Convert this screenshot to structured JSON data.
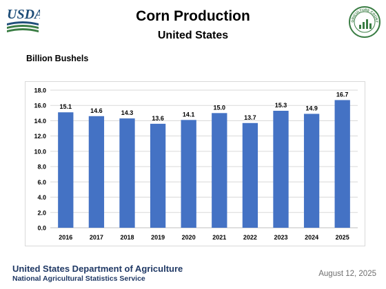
{
  "header": {
    "logo_text": "USDA",
    "seal_text": "AGRICULTURE COUNTS"
  },
  "footer": {
    "agency": "United States Department of Agriculture",
    "service": "National Agricultural Statistics Service",
    "date": "August 12, 2025"
  },
  "colors": {
    "bar": "#4472c4",
    "usda_blue": "#1f4e79",
    "usda_green": "#3a7d44",
    "footer_text": "#1f3864"
  },
  "chart_data": {
    "type": "bar",
    "title": "Corn Production",
    "subtitle": "United States",
    "ylabel": "Billion Bushels",
    "xlabel": "",
    "categories": [
      "2016",
      "2017",
      "2018",
      "2019",
      "2020",
      "2021",
      "2022",
      "2023",
      "2024",
      "2025"
    ],
    "values": [
      15.1,
      14.6,
      14.3,
      13.6,
      14.1,
      15.0,
      13.7,
      15.3,
      14.9,
      16.7
    ],
    "data_labels": [
      "15.1",
      "14.6",
      "14.3",
      "13.6",
      "14.1",
      "15.0",
      "13.7",
      "15.3",
      "14.9",
      "16.7"
    ],
    "ylim": [
      0,
      18
    ],
    "yticks": [
      "0.0",
      "2.0",
      "4.0",
      "6.0",
      "8.0",
      "10.0",
      "12.0",
      "14.0",
      "16.0",
      "18.0"
    ],
    "grid": true,
    "legend": "none"
  }
}
